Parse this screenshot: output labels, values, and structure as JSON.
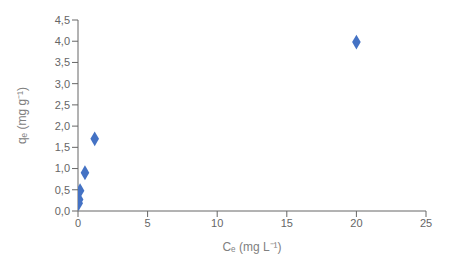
{
  "chart_data": {
    "type": "scatter",
    "x": [
      0.05,
      0.08,
      0.15,
      0.5,
      1.2,
      20.0
    ],
    "values": [
      0.18,
      0.27,
      0.48,
      0.9,
      1.7,
      3.98
    ],
    "color": "#4472C4",
    "marker": "diamond",
    "xlabel": "Cₑ (mg L⁻¹)",
    "ylabel": "qₑ (mg g⁻¹)",
    "xlim": [
      0,
      25
    ],
    "ylim": [
      0,
      4.5
    ],
    "xticks": [
      0,
      5,
      10,
      15,
      20,
      25
    ],
    "yticks": [
      {
        "value": 0.0,
        "label": "0,0"
      },
      {
        "value": 0.5,
        "label": "0,5"
      },
      {
        "value": 1.0,
        "label": "1,0"
      },
      {
        "value": 1.5,
        "label": "1,5"
      },
      {
        "value": 2.0,
        "label": "2,0"
      },
      {
        "value": 2.5,
        "label": "2,5"
      },
      {
        "value": 3.0,
        "label": "3,0"
      },
      {
        "value": 3.5,
        "label": "3,5"
      },
      {
        "value": 4.0,
        "label": "4,0"
      },
      {
        "value": 4.5,
        "label": "4,5"
      }
    ],
    "grid": false
  }
}
